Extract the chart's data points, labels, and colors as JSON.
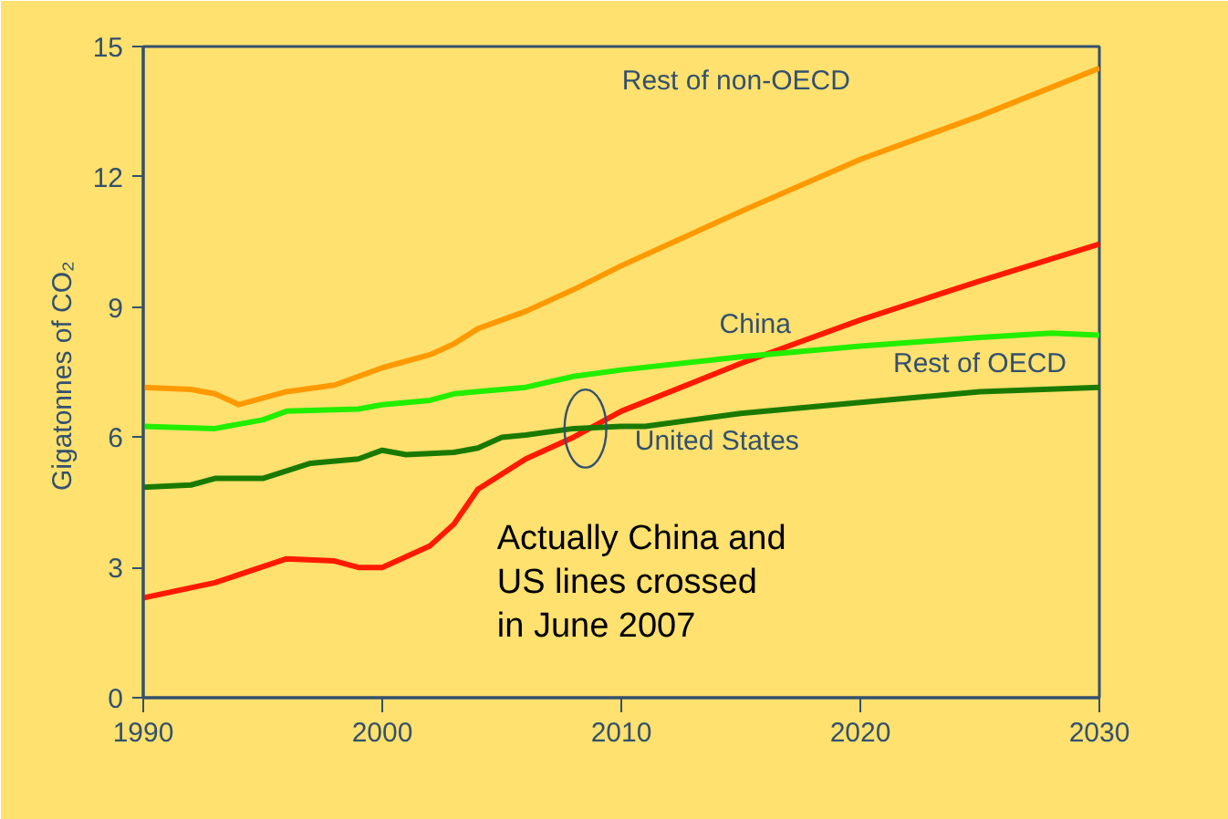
{
  "chart_data": {
    "type": "line",
    "ylabel": "Gigatonnes  of CO₂",
    "xlim": [
      1990,
      2030
    ],
    "ylim": [
      0,
      15
    ],
    "xticks": [
      1990,
      2000,
      2010,
      2020,
      2030
    ],
    "yticks": [
      0,
      3,
      6,
      9,
      12,
      15
    ],
    "grid": false,
    "marker": "none",
    "line_style": "solid",
    "series": [
      {
        "name": "Rest of non-OECD",
        "color": "#ff9900",
        "x": [
          1990,
          1992,
          1993,
          1994,
          1996,
          1998,
          2000,
          2002,
          2003,
          2004,
          2006,
          2008,
          2010,
          2015,
          2020,
          2025,
          2030
        ],
        "values": [
          7.15,
          7.1,
          7.0,
          6.75,
          7.05,
          7.2,
          7.6,
          7.9,
          8.15,
          8.5,
          8.9,
          9.4,
          9.95,
          11.2,
          12.4,
          13.4,
          14.5
        ]
      },
      {
        "name": "China",
        "color": "#ff1a00",
        "x": [
          1990,
          1993,
          1996,
          1998,
          1999,
          2000,
          2002,
          2003,
          2004,
          2006,
          2008,
          2010,
          2015,
          2020,
          2025,
          2030
        ],
        "values": [
          2.3,
          2.65,
          3.2,
          3.15,
          3.0,
          3.0,
          3.5,
          4.0,
          4.8,
          5.5,
          6.0,
          6.6,
          7.7,
          8.7,
          9.6,
          10.45
        ]
      },
      {
        "name": "Rest of OECD",
        "color": "#22ee00",
        "x": [
          1990,
          1993,
          1995,
          1996,
          1999,
          2000,
          2002,
          2003,
          2006,
          2008,
          2010,
          2015,
          2020,
          2025,
          2028,
          2030
        ],
        "values": [
          6.25,
          6.2,
          6.4,
          6.6,
          6.65,
          6.75,
          6.85,
          7.0,
          7.15,
          7.4,
          7.55,
          7.85,
          8.1,
          8.3,
          8.4,
          8.35
        ]
      },
      {
        "name": "United States",
        "color": "#1a7a00",
        "x": [
          1990,
          1992,
          1993,
          1995,
          1997,
          1999,
          2000,
          2001,
          2003,
          2004,
          2005,
          2006,
          2008,
          2010,
          2011,
          2015,
          2020,
          2025,
          2030
        ],
        "values": [
          4.85,
          4.9,
          5.05,
          5.05,
          5.4,
          5.5,
          5.7,
          5.6,
          5.65,
          5.75,
          6.0,
          6.05,
          6.2,
          6.25,
          6.25,
          6.55,
          6.8,
          7.05,
          7.15
        ]
      }
    ],
    "annotations": [
      {
        "text": "Actually China and\nUS lines crossed\nin June 2007",
        "x": 2008.5,
        "y": 6.2
      }
    ]
  }
}
